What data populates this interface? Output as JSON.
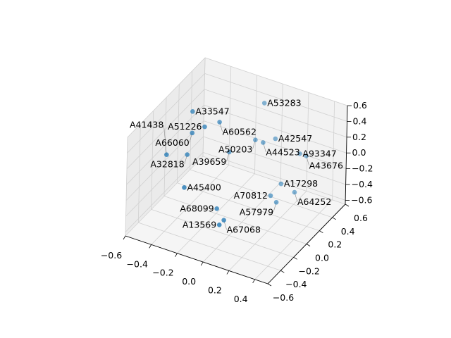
{
  "chart_data": {
    "type": "scatter",
    "projection": "3d",
    "title": "",
    "xlabel": "",
    "ylabel": "",
    "zlabel": "",
    "xlim": [
      -0.6,
      0.5
    ],
    "ylim": [
      -0.6,
      0.6
    ],
    "zlim": [
      -0.65,
      0.6
    ],
    "xticks": [
      -0.6,
      -0.4,
      -0.2,
      0.0,
      0.2,
      0.4
    ],
    "yticks": [
      -0.6,
      -0.4,
      -0.2,
      0.0,
      0.2,
      0.4,
      0.6
    ],
    "zticks": [
      -0.6,
      -0.4,
      -0.2,
      0.0,
      0.2,
      0.4,
      0.6
    ],
    "xtick_labels": [
      "−0.6",
      "−0.4",
      "−0.2",
      "0.0",
      "0.2",
      "0.4"
    ],
    "ytick_labels": [
      "−0.6",
      "−0.4",
      "−0.2",
      "0.0",
      "0.2",
      "0.4",
      "0.6"
    ],
    "ztick_labels": [
      "−0.6",
      "−0.4",
      "−0.2",
      "0.0",
      "0.2",
      "0.4",
      "0.6"
    ],
    "grid": true,
    "color": "#1f77b4",
    "points": [
      {
        "label": "A53283",
        "x": -0.05,
        "y": 0.42,
        "z": 0.48
      },
      {
        "label": "A33547",
        "x": -0.42,
        "y": 0.05,
        "z": 0.48
      },
      {
        "label": "A60562",
        "x": -0.26,
        "y": 0.15,
        "z": 0.35
      },
      {
        "label": "A51226",
        "x": -0.32,
        "y": 0.04,
        "z": 0.35
      },
      {
        "label": "A66060",
        "x": -0.41,
        "y": 0.03,
        "z": 0.23
      },
      {
        "label": "A50203",
        "x": -0.06,
        "y": 0.31,
        "z": 0.1
      },
      {
        "label": "A42547",
        "x": 0.05,
        "y": 0.4,
        "z": 0.1
      },
      {
        "label": "A44523",
        "x": 0.0,
        "y": 0.31,
        "z": 0.1
      },
      {
        "label": "A39659",
        "x": -0.2,
        "y": 0.19,
        "z": -0.03
      },
      {
        "label": "A93347",
        "x": 0.22,
        "y": 0.44,
        "z": -0.03
      },
      {
        "label": "A43676",
        "x": 0.27,
        "y": 0.44,
        "z": -0.03
      },
      {
        "label": "A41438",
        "x": -0.55,
        "y": -0.08,
        "z": -0.03
      },
      {
        "label": "A32818",
        "x": -0.43,
        "y": 0.0,
        "z": -0.03
      },
      {
        "label": "A45400",
        "x": -0.37,
        "y": -0.16,
        "z": -0.28
      },
      {
        "label": "A17298",
        "x": 0.12,
        "y": 0.36,
        "z": -0.4
      },
      {
        "label": "A70812",
        "x": 0.1,
        "y": 0.24,
        "z": -0.46
      },
      {
        "label": "A64252",
        "x": 0.22,
        "y": 0.37,
        "z": -0.46
      },
      {
        "label": "A57979",
        "x": 0.14,
        "y": 0.25,
        "z": -0.53
      },
      {
        "label": "A68099",
        "x": -0.17,
        "y": -0.05,
        "z": -0.53
      },
      {
        "label": "A67068",
        "x": -0.09,
        "y": -0.1,
        "z": -0.59
      },
      {
        "label": "A13569",
        "x": -0.09,
        "y": -0.17,
        "z": -0.59
      }
    ]
  }
}
